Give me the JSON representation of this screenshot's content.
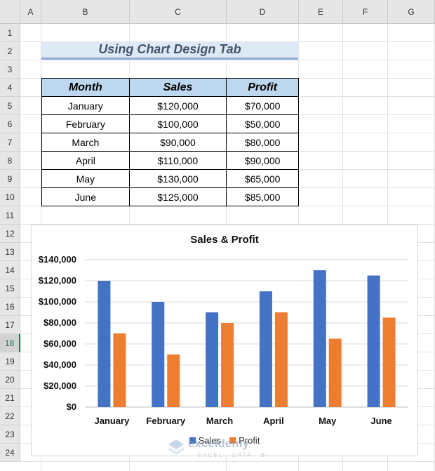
{
  "sheet": {
    "columns": [
      "A",
      "B",
      "C",
      "D",
      "E",
      "F",
      "G"
    ],
    "rows": [
      "1",
      "2",
      "3",
      "4",
      "5",
      "6",
      "7",
      "8",
      "9",
      "10",
      "11",
      "12",
      "13",
      "14",
      "15",
      "16",
      "17",
      "18",
      "19",
      "20",
      "21",
      "22",
      "23",
      "24"
    ],
    "active_row": "18"
  },
  "title": "Using Chart Design Tab",
  "table": {
    "headers": [
      "Month",
      "Sales",
      "Profit"
    ],
    "rows": [
      [
        "January",
        "$120,000",
        "$70,000"
      ],
      [
        "February",
        "$100,000",
        "$50,000"
      ],
      [
        "March",
        "$90,000",
        "$80,000"
      ],
      [
        "April",
        "$110,000",
        "$90,000"
      ],
      [
        "May",
        "$130,000",
        "$65,000"
      ],
      [
        "June",
        "$125,000",
        "$85,000"
      ]
    ]
  },
  "chart_data": {
    "type": "bar",
    "title": "Sales & Profit",
    "categories": [
      "January",
      "February",
      "March",
      "April",
      "May",
      "June"
    ],
    "series": [
      {
        "name": "Sales",
        "values": [
          120000,
          100000,
          90000,
          110000,
          130000,
          125000
        ],
        "color": "#4472c4"
      },
      {
        "name": "Profit",
        "values": [
          70000,
          50000,
          80000,
          90000,
          65000,
          85000
        ],
        "color": "#ed7d31"
      }
    ],
    "ylim": [
      0,
      140000
    ],
    "yticks": [
      "$0",
      "$20,000",
      "$40,000",
      "$60,000",
      "$80,000",
      "$100,000",
      "$120,000",
      "$140,000"
    ],
    "grid": true,
    "legend": "bottom"
  },
  "watermark": {
    "name": "exceldemy",
    "tagline": "EXCEL · DATA · BI"
  }
}
